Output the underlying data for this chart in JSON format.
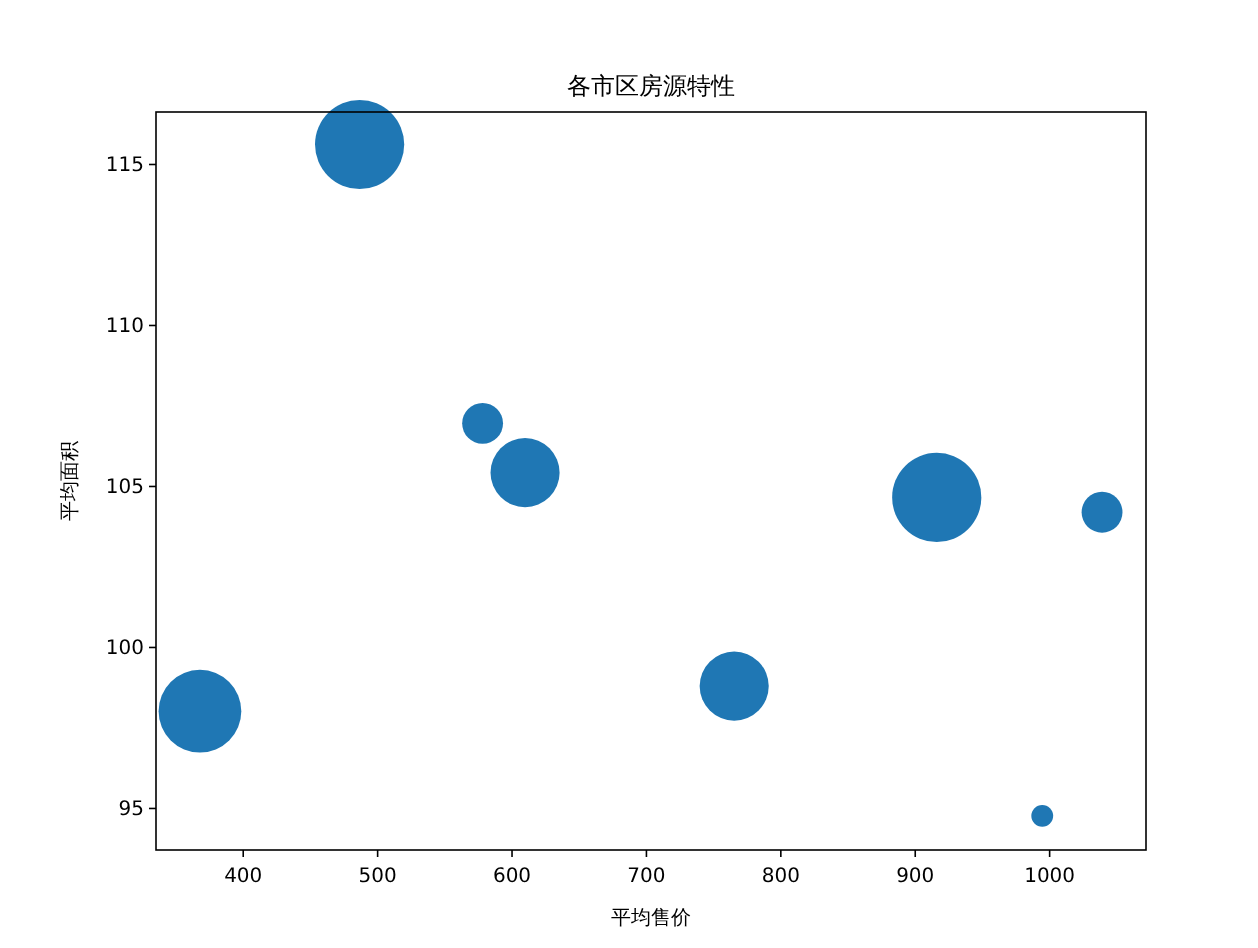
{
  "chart_data": {
    "type": "bubble",
    "title": "各市区房源特性",
    "xlabel": "平均售价",
    "ylabel": "平均面积",
    "x": [
      486.6,
      578.1,
      609.7,
      916,
      1039,
      367.8,
      765.3,
      994.5
    ],
    "series": [
      {
        "color": "#1f77b4",
        "values": [
          115.62,
          106.96,
          105.43,
          104.66,
          104.2,
          98.02,
          98.8,
          94.77
        ],
        "sizes": [
          1,
          0.21,
          0.6,
          1,
          0.21,
          0.86,
          0.6,
          0.06
        ]
      }
    ],
    "xlim": [
      335.1,
      1071.7
    ],
    "ylim": [
      93.71,
      116.63
    ],
    "xticks": [
      400,
      500,
      600,
      700,
      800,
      900,
      1000
    ],
    "yticks": [
      95,
      100,
      105,
      110,
      115
    ],
    "grid": false,
    "marker": "circle"
  }
}
